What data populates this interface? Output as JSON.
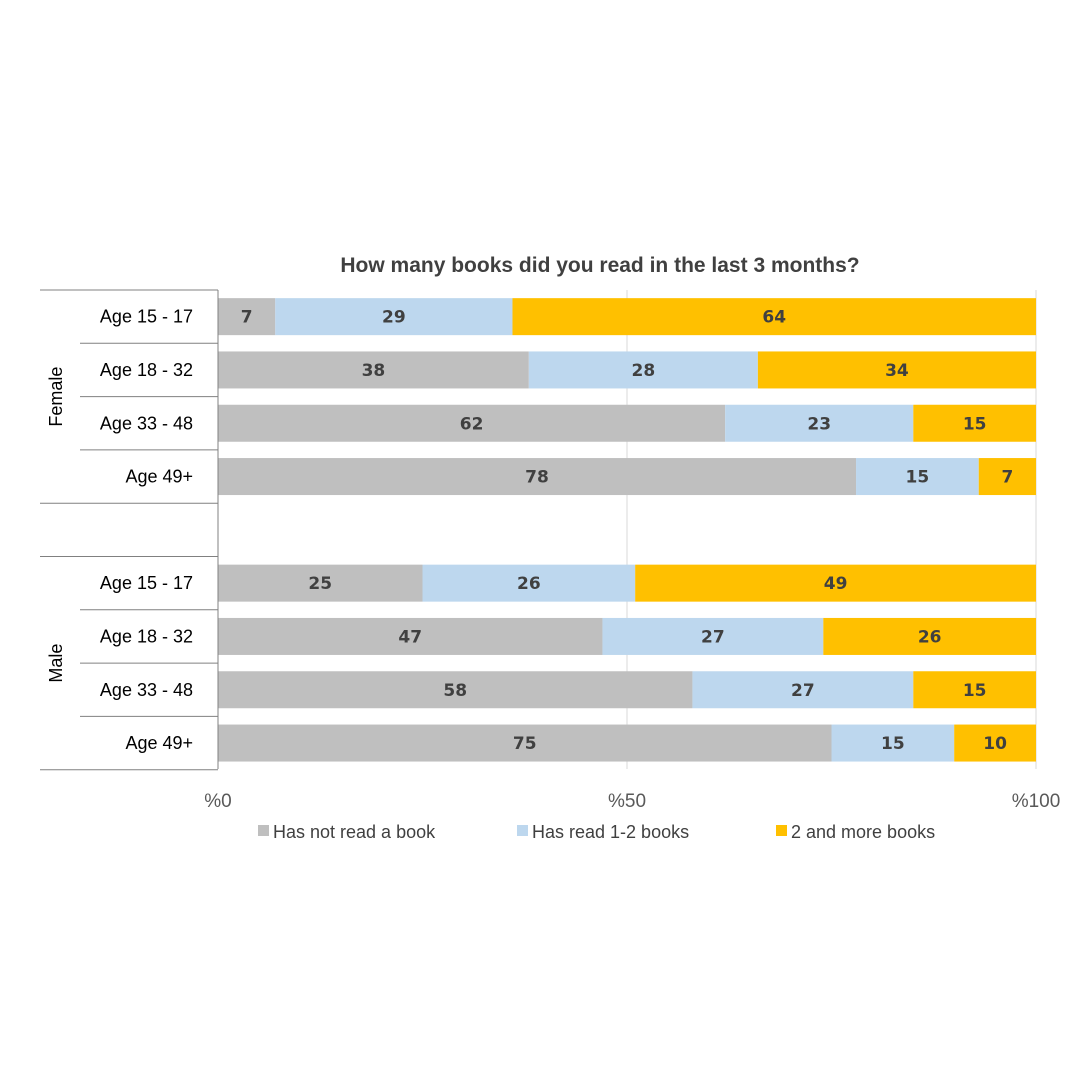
{
  "chart_data": {
    "type": "bar",
    "orientation": "horizontal",
    "stacked": true,
    "title": "How many books did you read in the last 3 months?",
    "groups": [
      {
        "name": "Female",
        "categories": [
          "Age 15 - 17",
          "Age 18 - 32",
          "Age 33 - 48",
          "Age 49+"
        ]
      },
      {
        "name": "Male",
        "categories": [
          "Age 15 - 17",
          "Age 18 - 32",
          "Age 33 - 48",
          "Age 49+"
        ]
      }
    ],
    "series": [
      {
        "name": "Has not read a book",
        "color": "#BFBFBF",
        "values": [
          [
            7,
            38,
            62,
            78
          ],
          [
            25,
            47,
            58,
            75
          ]
        ]
      },
      {
        "name": "Has read 1-2 books",
        "color": "#BDD7EE",
        "values": [
          [
            29,
            28,
            23,
            15
          ],
          [
            26,
            27,
            27,
            15
          ]
        ]
      },
      {
        "name": "2 and more books",
        "color": "#FFC000",
        "values": [
          [
            64,
            34,
            15,
            7
          ],
          [
            49,
            26,
            15,
            10
          ]
        ]
      }
    ],
    "xlim": [
      0,
      100
    ],
    "xticks": [
      "%0",
      "%50",
      "%100"
    ],
    "grid": true,
    "legend_position": "bottom"
  }
}
